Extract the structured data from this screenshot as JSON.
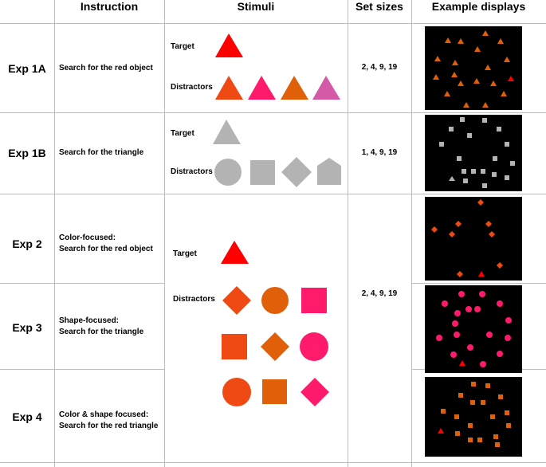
{
  "header": {
    "instruction": "Instruction",
    "stimuli": "Stimuli",
    "set_sizes": "Set sizes",
    "example_displays": "Example displays"
  },
  "rows": [
    {
      "exp": "Exp 1A",
      "instruction_lines": [
        "Search for the red object"
      ],
      "set_sizes": "2, 4, 9, 19"
    },
    {
      "exp": "Exp 1B",
      "instruction_lines": [
        "Search for the triangle"
      ],
      "set_sizes": "1, 4, 9, 19"
    },
    {
      "exp": "Exp 2",
      "instruction_lines": [
        "Color-focused:",
        "Search for the red object"
      ],
      "set_sizes": ""
    },
    {
      "exp": "Exp 3",
      "instruction_lines": [
        "Shape-focused:",
        "Search for the triangle"
      ],
      "set_sizes": "2, 4, 9, 19"
    },
    {
      "exp": "Exp 4",
      "instruction_lines": [
        "Color & shape focused:",
        "Search for the red triangle"
      ],
      "set_sizes": ""
    }
  ],
  "stimuli_labels": {
    "target": "Target",
    "distractors": "Distractors"
  },
  "colors": {
    "red": "#ff0000",
    "orange_red": "#f04a14",
    "pink": "#ff1a6b",
    "orange": "#e0600a",
    "magenta": "#d45aa8",
    "gray": "#b3b3b3",
    "panel_bg": "#000000"
  }
}
